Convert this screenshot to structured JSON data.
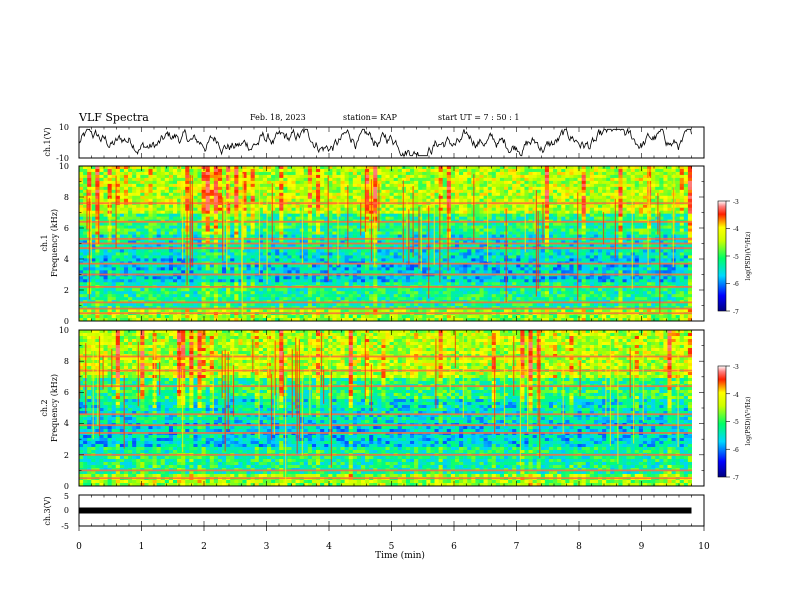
{
  "header": {
    "title": "VLF Spectra",
    "date": "Feb. 18, 2023",
    "station": "station= KAP",
    "start": "start  UT =   7 : 50 : 1"
  },
  "chart_data": [
    {
      "type": "line",
      "name": "waveform-ch1",
      "ylabel": "ch.1(V)",
      "ylim": [
        -10,
        10
      ],
      "yticks": [
        "10",
        "-10"
      ],
      "xlim": [
        0,
        10
      ],
      "x_extent": [
        0,
        9.8
      ]
    },
    {
      "type": "heatmap",
      "name": "spectrogram-ch1",
      "ylabel": "ch.1\nFrequency (kHz)",
      "ylabel_lines": [
        "ch.1",
        "Frequency (kHz)"
      ],
      "ylim": [
        0,
        10
      ],
      "yticks": [
        "0",
        "2",
        "4",
        "6",
        "8",
        "10"
      ],
      "xlim": [
        0,
        10
      ],
      "x_extent": [
        0,
        9.8
      ],
      "colorbar": {
        "label": "log(PSD)(V²/Hz)",
        "range": [
          -7,
          -3
        ],
        "ticks": [
          "-3",
          "-4",
          "-5",
          "-6",
          "-7"
        ]
      },
      "bands_khz": [
        0.5,
        0.8,
        1.2,
        2.2,
        3.0,
        3.7,
        4.7,
        5.0,
        5.3,
        6.4,
        7.6
      ]
    },
    {
      "type": "heatmap",
      "name": "spectrogram-ch2",
      "ylabel": "ch.2\nFrequency (kHz)",
      "ylabel_lines": [
        "ch.2",
        "Frequency (kHz)"
      ],
      "ylim": [
        0,
        10
      ],
      "yticks": [
        "0",
        "2",
        "4",
        "6",
        "8",
        "10"
      ],
      "xlim": [
        0,
        10
      ],
      "x_extent": [
        0,
        9.8
      ],
      "colorbar": {
        "label": "log(PSD)(V²/Hz)",
        "range": [
          -7,
          -3
        ],
        "ticks": [
          "-3",
          "-4",
          "-5",
          "-6",
          "-7"
        ]
      },
      "bands_khz": [
        0.5,
        1.0,
        2.0,
        3.4,
        3.9,
        4.6,
        6.4,
        7.4,
        8.3
      ]
    },
    {
      "type": "line",
      "name": "waveform-ch3",
      "ylabel": "ch.3(V)",
      "ylim": [
        -5,
        5
      ],
      "yticks": [
        "5",
        "0",
        "-5"
      ],
      "xlim": [
        0,
        10
      ],
      "x_extent": [
        0,
        9.8
      ],
      "constant_level": 0,
      "xlabel": "Time (min)",
      "xticks": [
        "0",
        "1",
        "2",
        "3",
        "4",
        "5",
        "6",
        "7",
        "8",
        "9",
        "10"
      ]
    }
  ]
}
